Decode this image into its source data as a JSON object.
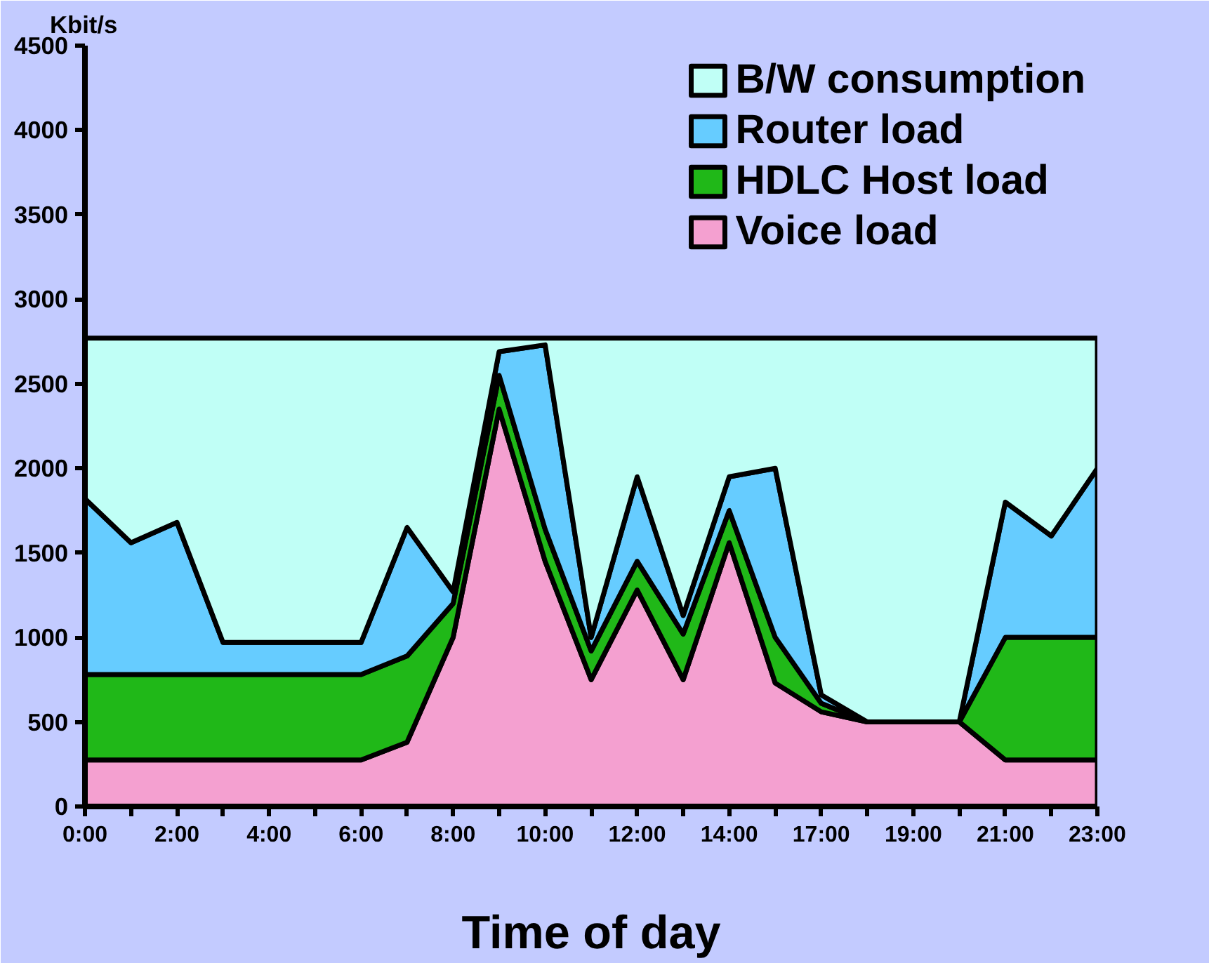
{
  "chart_data": {
    "type": "area",
    "stacked": true,
    "ylabel": "Kbit/s",
    "xlabel": "Time of day",
    "categories": [
      "0:00",
      null,
      "2:00",
      null,
      "4:00",
      null,
      "6:00",
      null,
      "8:00",
      null,
      "10:00",
      null,
      "12:00",
      null,
      "14:00",
      null,
      "17:00",
      null,
      "19:00",
      null,
      "21:00",
      null,
      "23:00"
    ],
    "ylim": [
      0,
      4500
    ],
    "yticks": [
      0,
      500,
      1000,
      1500,
      2000,
      2500,
      3000,
      3500,
      4000,
      4500
    ],
    "grid": false,
    "legend": "top right",
    "series": [
      {
        "name": "Voice load",
        "color": "#f4a0d0",
        "values": [
          275,
          275,
          275,
          275,
          275,
          275,
          275,
          380,
          1000,
          2350,
          1450,
          750,
          1280,
          750,
          1560,
          730,
          560,
          500,
          500,
          500,
          275,
          275,
          275
        ]
      },
      {
        "name": "HDLC Host load",
        "color": "#20b818",
        "values": [
          505,
          505,
          505,
          505,
          505,
          505,
          505,
          510,
          200,
          200,
          190,
          170,
          170,
          270,
          190,
          270,
          50,
          0,
          0,
          0,
          725,
          725,
          725
        ]
      },
      {
        "name": "Router load",
        "color": "#66ccff",
        "values": [
          1040,
          780,
          900,
          190,
          190,
          190,
          190,
          760,
          70,
          140,
          1090,
          80,
          500,
          110,
          200,
          1000,
          50,
          0,
          0,
          0,
          800,
          600,
          1000
        ]
      },
      {
        "name": "B/W consumption",
        "color": "#c0fff6",
        "values": [
          950,
          1210,
          1090,
          1800,
          1800,
          1800,
          1800,
          1120,
          1500,
          80,
          40,
          1770,
          820,
          1640,
          820,
          770,
          2110,
          2270,
          2270,
          2270,
          970,
          1170,
          770
        ]
      }
    ]
  }
}
